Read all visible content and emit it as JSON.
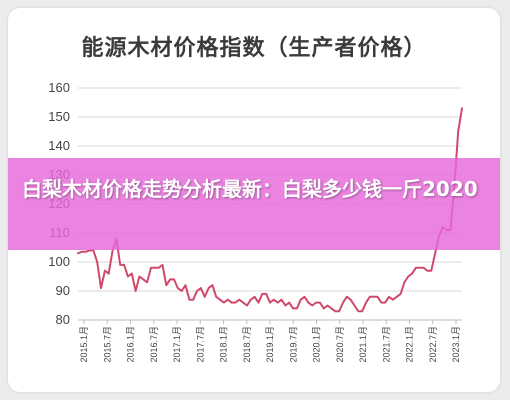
{
  "banner": {
    "text": "白梨木材价格走势分析最新：白梨多少钱一斤2020"
  },
  "chart_data": {
    "type": "line",
    "title": "能源木材价格指数（生产者价格）",
    "xlabel": "",
    "ylabel": "",
    "ylim": [
      80,
      160
    ],
    "yticks": [
      80,
      90,
      100,
      110,
      120,
      130,
      140,
      150,
      160
    ],
    "grid": true,
    "line_color": "#cf4a6a",
    "xticks": [
      "2015.1月",
      "2015.7月",
      "2016.1月",
      "2016.7月",
      "2017.1月",
      "2017.7月",
      "2018.1月",
      "2018.7月",
      "2019.1月",
      "2019.7月",
      "2020.1月",
      "2020.7月",
      "2021.1月",
      "2021.7月",
      "2022.1月",
      "2022.7月",
      "2023.1月"
    ],
    "series": [
      {
        "values": [
          103,
          103.5,
          103.5,
          104,
          104,
          100,
          91,
          97,
          96,
          104,
          108,
          99,
          99,
          95,
          96,
          90,
          95,
          94,
          93,
          98,
          98,
          98,
          99,
          92,
          94,
          94,
          91,
          90,
          92,
          87,
          87,
          90,
          91,
          88,
          91,
          92,
          88,
          87,
          86,
          87,
          86,
          86,
          87,
          86,
          85,
          87,
          88,
          86,
          89,
          89,
          86,
          87,
          86,
          87,
          85,
          86,
          84,
          84,
          87,
          88,
          86,
          85,
          86,
          86,
          84,
          85,
          84,
          83,
          83,
          86,
          88,
          87,
          85,
          83,
          83,
          86,
          88,
          88,
          88,
          86,
          86,
          88,
          87,
          88,
          89,
          93,
          95,
          96,
          98,
          98,
          98,
          97,
          97,
          103,
          109,
          112,
          111,
          111,
          126,
          145,
          153
        ]
      }
    ]
  }
}
